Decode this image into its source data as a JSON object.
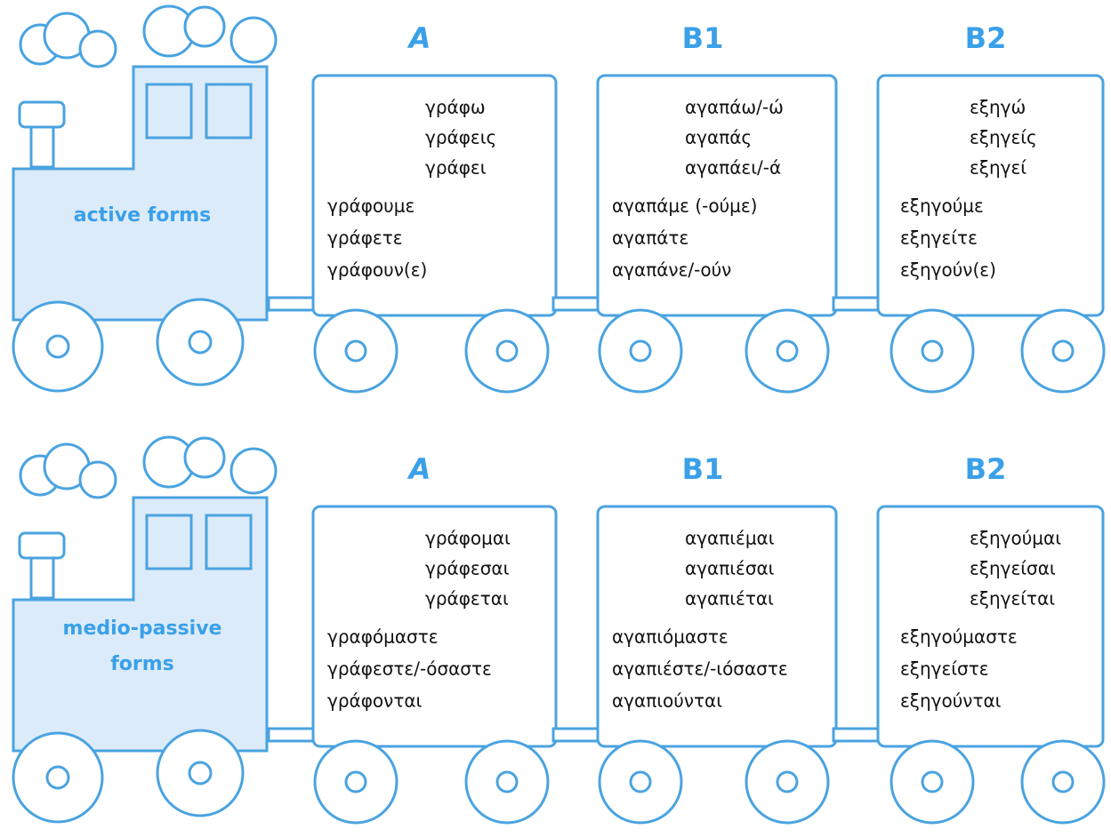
{
  "trains": [
    {
      "engine_label": [
        "active forms"
      ],
      "wagons": [
        {
          "heading": "A",
          "singular": [
            "γράφω",
            "γράφεις",
            "γράφει"
          ],
          "plural": [
            "γράφουμε",
            "γράφετε",
            "γράφουν(ε)"
          ]
        },
        {
          "heading": "B1",
          "singular": [
            "αγαπάω/-ώ",
            "αγαπάς",
            "αγαπάει/-ά"
          ],
          "plural": [
            "αγαπάμε (-ούμε)",
            "αγαπάτε",
            "αγαπάνε/-ούν"
          ]
        },
        {
          "heading": "B2",
          "singular": [
            "εξηγώ",
            "εξηγείς",
            "εξηγεί"
          ],
          "plural": [
            "εξηγούμε",
            "εξηγείτε",
            "εξηγούν(ε)"
          ]
        }
      ]
    },
    {
      "engine_label": [
        "medio-passive",
        "forms"
      ],
      "wagons": [
        {
          "heading": "A",
          "singular": [
            "γράφομαι",
            "γράφεσαι",
            "γράφεται"
          ],
          "plural": [
            "γραφόμαστε",
            "γράφεστε/-όσαστε",
            "γράφονται"
          ]
        },
        {
          "heading": "B1",
          "singular": [
            "αγαπιέμαι",
            "αγαπιέσαι",
            "αγαπιέται"
          ],
          "plural": [
            "αγαπιόμαστε",
            "αγαπιέστε/-ιόσαστε",
            "αγαπιούνται"
          ]
        },
        {
          "heading": "B2",
          "singular": [
            "εξηγούμαι",
            "εξηγείσαι",
            "εξηγείται"
          ],
          "plural": [
            "εξηγούμαστε",
            "εξηγείστε",
            "εξηγούνται"
          ]
        }
      ]
    }
  ]
}
